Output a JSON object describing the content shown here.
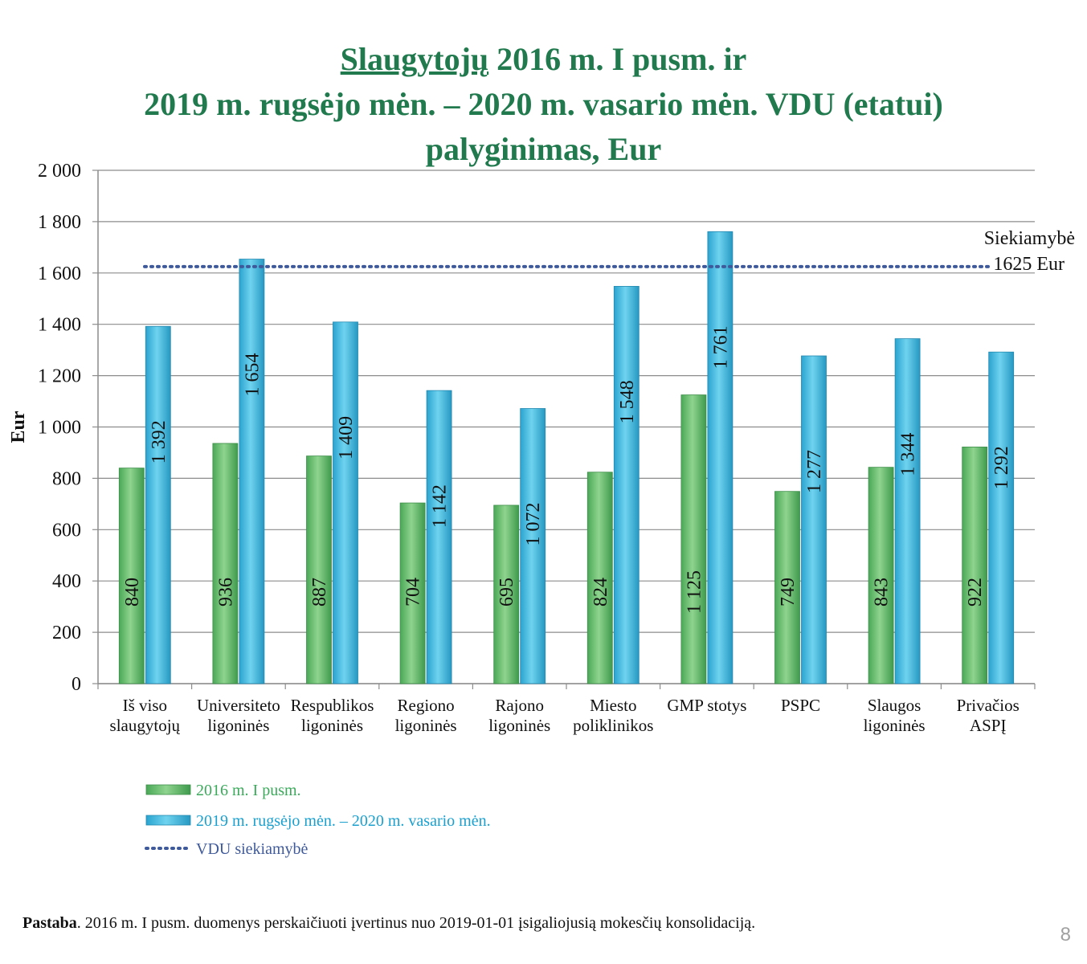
{
  "title": {
    "part1": "Slaugytojų",
    "part2": " 2016 m. I pusm. ir",
    "line2": "2019 m. rugsėjo mėn. – 2020 m. vasario mėn. VDU (etatui)",
    "line3": "palyginimas, Eur"
  },
  "note": {
    "bold": "Pastaba",
    "text": ". 2016 m. I pusm. duomenys perskaičiuoti įvertinus nuo 2019-01-01 įsigaliojusią mokesčių konsolidaciją."
  },
  "page_number": "8",
  "colors": {
    "green": "#5cb85c",
    "blue": "#35b6df",
    "target_line": "#3f5a9a",
    "title": "#217a4e",
    "legend_green_text": "#3aaa5a",
    "legend_blue_text": "#1aa0cf",
    "legend_target_text": "#3f5a9a"
  },
  "chart_data": {
    "type": "bar",
    "ylabel": "Eur",
    "ylim": [
      0,
      2000
    ],
    "yticks": [
      0,
      200,
      400,
      600,
      800,
      1000,
      1200,
      1400,
      1600,
      1800,
      2000
    ],
    "ytick_labels": [
      "0",
      "200",
      "400",
      "600",
      "800",
      "1 000",
      "1 200",
      "1 400",
      "1 600",
      "1 800",
      "2 000"
    ],
    "grid": true,
    "categories": [
      [
        "Iš viso",
        "slaugytojų"
      ],
      [
        "Universiteto",
        "ligoninės"
      ],
      [
        "Respublikos",
        "ligoninės"
      ],
      [
        "Regiono",
        "ligoninės"
      ],
      [
        "Rajono",
        "ligoninės"
      ],
      [
        "Miesto",
        "poliklinikos"
      ],
      [
        "GMP stotys"
      ],
      [
        "PSPC"
      ],
      [
        "Slaugos",
        "ligoninės"
      ],
      [
        "Privačios",
        "ASPĮ"
      ]
    ],
    "series": [
      {
        "name": "2016 m. I pusm.",
        "values": [
          840,
          936,
          887,
          704,
          695,
          824,
          1125,
          749,
          843,
          922
        ],
        "labels": [
          "840",
          "936",
          "887",
          "704",
          "695",
          "824",
          "1 125",
          "749",
          "843",
          "922"
        ]
      },
      {
        "name": "2019 m. rugsėjo mėn. – 2020 m. vasario mėn.",
        "values": [
          1392,
          1654,
          1409,
          1142,
          1072,
          1548,
          1761,
          1277,
          1344,
          1292
        ],
        "labels": [
          "1 392",
          "1 654",
          "1 409",
          "1 142",
          "1 072",
          "1 548",
          "1 761",
          "1 277",
          "1 344",
          "1 292"
        ]
      }
    ],
    "target": {
      "name": "VDU siekiamybė",
      "value": 1625,
      "annotation": [
        "Siekiamybė",
        "1625 Eur"
      ]
    },
    "legend": {
      "position": "bottom-left",
      "entries": [
        "2016 m. I pusm.",
        "2019 m. rugsėjo mėn. – 2020 m. vasario mėn.",
        "VDU siekiamybė"
      ]
    }
  }
}
